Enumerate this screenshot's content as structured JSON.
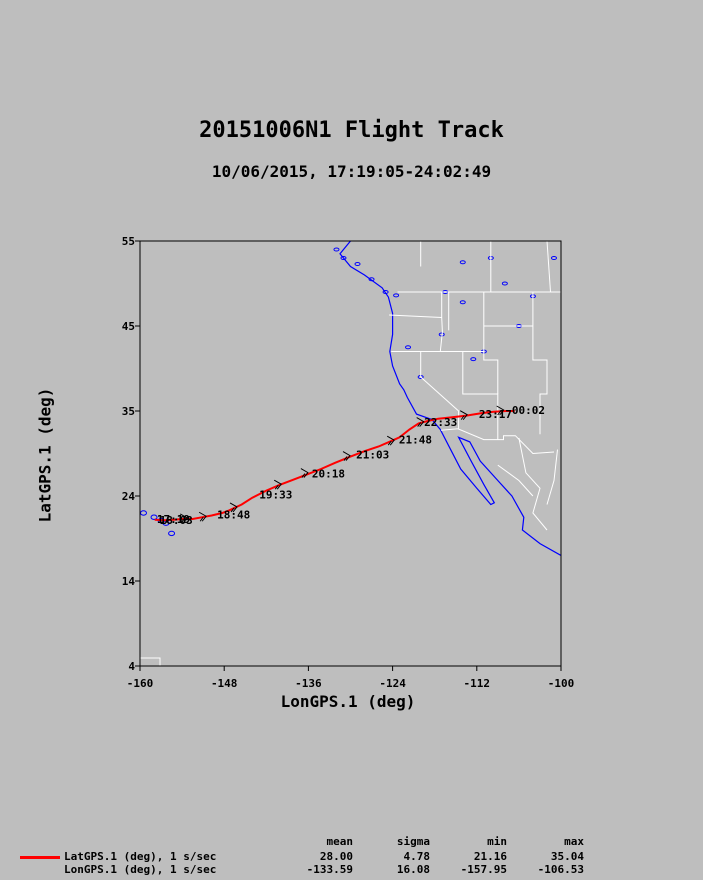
{
  "colors": {
    "background": "#bebebe",
    "track": "#ff0000",
    "coastline": "#0000ff",
    "borders": "#ffffff"
  },
  "chart_data": {
    "type": "line",
    "title": "20151006N1 Flight Track",
    "subtitle": "10/06/2015, 17:19:05-24:02:49",
    "xlabel": "LonGPS.1 (deg)",
    "ylabel": "LatGPS.1 (deg)",
    "xlim": [
      -160,
      -100
    ],
    "ylim": [
      4,
      55
    ],
    "xticks": [
      "-160",
      "-148",
      "-136",
      "-124",
      "-112",
      "-100"
    ],
    "yticks": [
      "4",
      "14",
      "24",
      "35",
      "45",
      "55"
    ],
    "grid": false,
    "series": [
      {
        "name": "LatGPS.1 (deg), 1 s/sec",
        "x": [
          -157.9,
          -156.5,
          -155.2,
          -154,
          -152.5,
          -151.2,
          -149.8,
          -148.3,
          -147.3,
          -145.5,
          -144,
          -142,
          -140.2,
          -138.2,
          -136.2,
          -134.2,
          -132.2,
          -130,
          -128,
          -126,
          -124.2,
          -123,
          -121.6,
          -120.3,
          -119,
          -117.5,
          -115.5,
          -113.5,
          -111.4,
          -109.6,
          -107.8,
          -106.6
        ],
        "y": [
          21.2,
          21.15,
          21.2,
          21.3,
          21.3,
          21.5,
          21.7,
          22.0,
          22.3,
          23.0,
          23.8,
          24.7,
          25.4,
          26.1,
          26.8,
          27.5,
          28.3,
          29.1,
          29.8,
          30.4,
          31.1,
          31.6,
          32.6,
          33.4,
          33.7,
          34.0,
          34.2,
          34.4,
          34.7,
          34.9,
          35.0,
          35.0
        ]
      }
    ],
    "time_labels": [
      {
        "text": "18:03",
        "lon": -157.2,
        "lat": 21.2
      },
      {
        "text": "17:19",
        "lon": -157.6,
        "lat": 21.3
      },
      {
        "text": "18:48",
        "lon": -149.0,
        "lat": 21.8
      },
      {
        "text": "19:33",
        "lon": -143.0,
        "lat": 24.2
      },
      {
        "text": "20:18",
        "lon": -135.5,
        "lat": 26.9
      },
      {
        "text": "21:03",
        "lon": -129.2,
        "lat": 29.4
      },
      {
        "text": "21:48",
        "lon": -123.1,
        "lat": 31.3
      },
      {
        "text": "22:33",
        "lon": -119.5,
        "lat": 33.6
      },
      {
        "text": "23:17",
        "lon": -111.7,
        "lat": 34.6
      },
      {
        "text": "00:02",
        "lon": -107.0,
        "lat": 35.1
      }
    ],
    "arrows": [
      {
        "lon": -153.7,
        "lat": 21.3,
        "dir": "up"
      },
      {
        "lon": -151.0,
        "lat": 21.5,
        "dir": "up"
      },
      {
        "lon": -146.6,
        "lat": 22.6,
        "dir": "up"
      },
      {
        "lon": -140.3,
        "lat": 25.4,
        "dir": "up"
      },
      {
        "lon": -136.5,
        "lat": 26.9,
        "dir": "up"
      },
      {
        "lon": -130.5,
        "lat": 29.1,
        "dir": "up"
      },
      {
        "lon": -124.2,
        "lat": 31.1,
        "dir": "up"
      },
      {
        "lon": -120.0,
        "lat": 33.5,
        "dir": "up"
      },
      {
        "lon": -113.8,
        "lat": 34.4,
        "dir": "up"
      },
      {
        "lon": -108.6,
        "lat": 35.0,
        "dir": "up"
      }
    ]
  },
  "stats": {
    "headers": {
      "mean": "mean",
      "sigma": "sigma",
      "min": "min",
      "max": "max"
    },
    "rows": [
      {
        "label": "LatGPS.1 (deg), 1 s/sec",
        "mean": "28.00",
        "sigma": "4.78",
        "min": "21.16",
        "max": "35.04"
      },
      {
        "label": "LonGPS.1 (deg), 1 s/sec",
        "mean": "-133.59",
        "sigma": "16.08",
        "min": "-157.95",
        "max": "-106.53"
      }
    ]
  }
}
